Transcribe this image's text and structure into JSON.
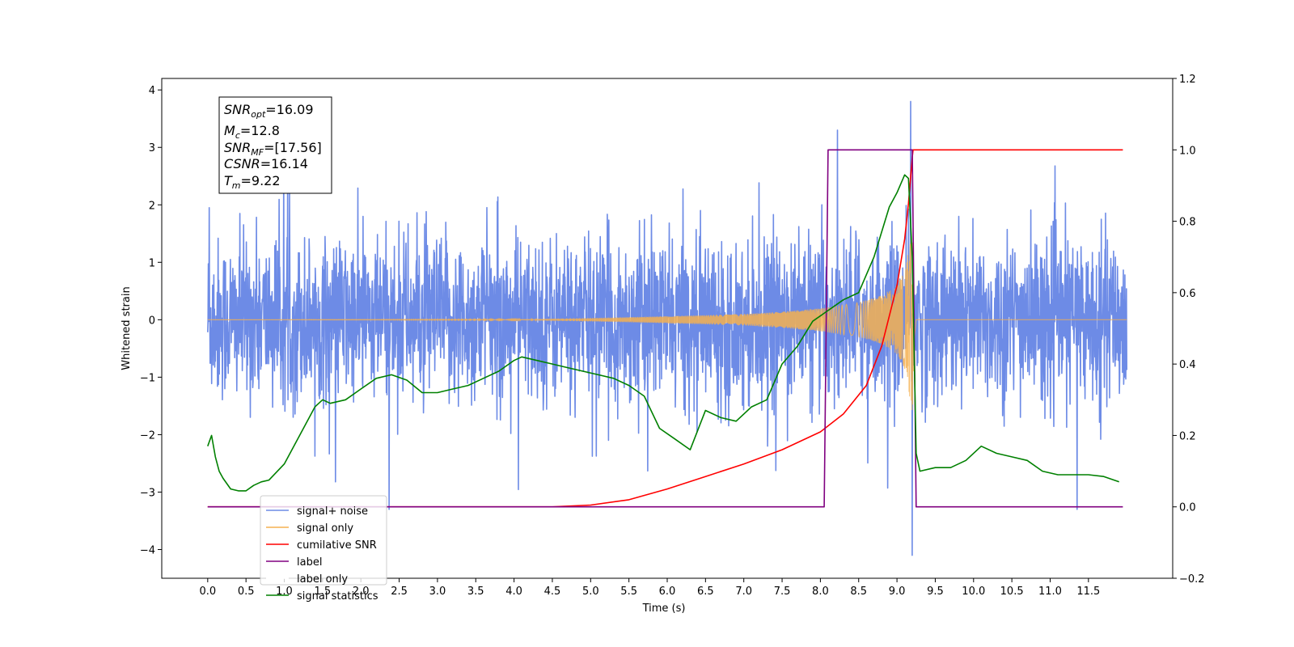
{
  "chart_data": {
    "type": "line",
    "xlabel": "Time (s)",
    "ylabel": "Whitened strain",
    "xlim": [
      -0.6,
      12.6
    ],
    "ylim": [
      -4.5,
      4.2
    ],
    "ylim_right": [
      -0.2,
      1.2
    ],
    "x_ticks": [
      0.0,
      0.5,
      1.0,
      1.5,
      2.0,
      2.5,
      3.0,
      3.5,
      4.0,
      4.5,
      5.0,
      5.5,
      6.0,
      6.5,
      7.0,
      7.5,
      8.0,
      8.5,
      9.0,
      9.5,
      10.0,
      10.5,
      11.0,
      11.5
    ],
    "x_tick_labels": [
      "0.0",
      "0.5",
      "1.0",
      "1.5",
      "2.0",
      "2.5",
      "3.0",
      "3.5",
      "4.0",
      "4.5",
      "5.0",
      "5.5",
      "6.0",
      "6.5",
      "7.0",
      "7.5",
      "8.0",
      "8.5",
      "9.0",
      "9.5",
      "10.0",
      "10.5",
      "11.0",
      "11.5"
    ],
    "y_ticks": [
      4,
      3,
      2,
      1,
      0,
      -1,
      -2,
      -3,
      -4
    ],
    "y_tick_labels": [
      "4",
      "3",
      "2",
      "1",
      "0",
      "−1",
      "−2",
      "−3",
      "−4"
    ],
    "y_ticks_right": [
      1.2,
      1.0,
      0.8,
      0.6,
      0.4,
      0.2,
      0.0,
      -0.2
    ],
    "y_tick_labels_right": [
      "1.2",
      "1.0",
      "0.8",
      "0.6",
      "0.4",
      "0.2",
      "0.0",
      "−0.2"
    ],
    "grid": false,
    "legend_position": "lower-left",
    "series": [
      {
        "name": "signal+ noise",
        "color": "#6d8be6",
        "axis": "left",
        "style": "noise",
        "x_range": [
          0.0,
          12.0
        ],
        "sigma": 0.7,
        "peak_spikes": [
          [
            9.18,
            3.8
          ],
          [
            9.2,
            -4.1
          ],
          [
            11.35,
            -3.3
          ],
          [
            0.02,
            1.95
          ]
        ]
      },
      {
        "name": "signal only",
        "color": "#f5b050",
        "axis": "left",
        "style": "chirp",
        "x_range": [
          0.0,
          12.0
        ],
        "merger_time": 9.22,
        "envelope": {
          "x": [
            0.0,
            4.0,
            5.0,
            6.0,
            7.0,
            7.5,
            8.0,
            8.5,
            8.8,
            9.0,
            9.1,
            9.2,
            9.25,
            12.0
          ],
          "y": [
            0.0,
            0.005,
            0.03,
            0.06,
            0.1,
            0.14,
            0.2,
            0.3,
            0.42,
            0.6,
            0.85,
            1.6,
            0.0,
            0.0
          ]
        }
      },
      {
        "name": "cumilative SNR",
        "color": "#ff0000",
        "axis": "right",
        "x": [
          0.0,
          4.0,
          4.5,
          5.0,
          5.5,
          6.0,
          6.5,
          7.0,
          7.5,
          8.0,
          8.3,
          8.6,
          8.8,
          9.0,
          9.1,
          9.15,
          9.2,
          9.21,
          11.95
        ],
        "y": [
          0.0,
          0.0,
          0.0,
          0.005,
          0.02,
          0.05,
          0.085,
          0.12,
          0.16,
          0.21,
          0.26,
          0.34,
          0.45,
          0.62,
          0.75,
          0.85,
          0.98,
          1.0,
          1.0
        ]
      },
      {
        "name": "label",
        "color": "#800080",
        "axis": "right",
        "x": [
          0.0,
          8.05,
          8.1,
          9.2,
          9.25,
          11.95
        ],
        "y": [
          0.0,
          0.0,
          1.0,
          1.0,
          0.0,
          0.0
        ]
      },
      {
        "name": "label only",
        "color": "#ffffff",
        "axis": "right",
        "x": [],
        "y": []
      },
      {
        "name": "signal statistics",
        "color": "#008000",
        "axis": "right",
        "x": [
          0.0,
          0.05,
          0.1,
          0.15,
          0.2,
          0.3,
          0.4,
          0.5,
          0.6,
          0.7,
          0.8,
          1.0,
          1.2,
          1.4,
          1.5,
          1.6,
          1.8,
          2.0,
          2.2,
          2.4,
          2.6,
          2.8,
          3.0,
          3.2,
          3.4,
          3.6,
          3.8,
          4.0,
          4.1,
          4.3,
          4.5,
          4.7,
          4.9,
          5.1,
          5.3,
          5.5,
          5.7,
          5.9,
          6.1,
          6.3,
          6.5,
          6.7,
          6.9,
          7.1,
          7.3,
          7.5,
          7.7,
          7.9,
          8.1,
          8.3,
          8.5,
          8.7,
          8.9,
          9.0,
          9.1,
          9.15,
          9.2,
          9.25,
          9.3,
          9.5,
          9.7,
          9.9,
          10.1,
          10.3,
          10.5,
          10.7,
          10.9,
          11.1,
          11.3,
          11.5,
          11.7,
          11.9
        ],
        "y": [
          0.17,
          0.2,
          0.14,
          0.1,
          0.08,
          0.05,
          0.045,
          0.045,
          0.06,
          0.07,
          0.075,
          0.12,
          0.2,
          0.28,
          0.3,
          0.29,
          0.3,
          0.33,
          0.36,
          0.37,
          0.355,
          0.32,
          0.32,
          0.33,
          0.34,
          0.36,
          0.38,
          0.41,
          0.42,
          0.41,
          0.4,
          0.39,
          0.38,
          0.37,
          0.36,
          0.34,
          0.31,
          0.22,
          0.19,
          0.16,
          0.27,
          0.25,
          0.24,
          0.28,
          0.3,
          0.4,
          0.45,
          0.52,
          0.55,
          0.58,
          0.6,
          0.7,
          0.84,
          0.88,
          0.93,
          0.92,
          0.7,
          0.15,
          0.1,
          0.11,
          0.11,
          0.13,
          0.17,
          0.15,
          0.14,
          0.13,
          0.1,
          0.09,
          0.09,
          0.09,
          0.085,
          0.07
        ]
      }
    ],
    "annotations": {
      "snr_opt": {
        "base": "SNR",
        "sub": "opt",
        "value": "=16.09"
      },
      "mc": {
        "base": "M",
        "sub": "c",
        "value": "=12.8"
      },
      "snr_mf": {
        "base": "SNR",
        "sub": "MF",
        "value": "=[17.56]"
      },
      "csnr": {
        "base": "CSNR",
        "sub": "",
        "value": "=16.14"
      },
      "tm": {
        "base": "T",
        "sub": "m",
        "value": "=9.22"
      }
    }
  }
}
